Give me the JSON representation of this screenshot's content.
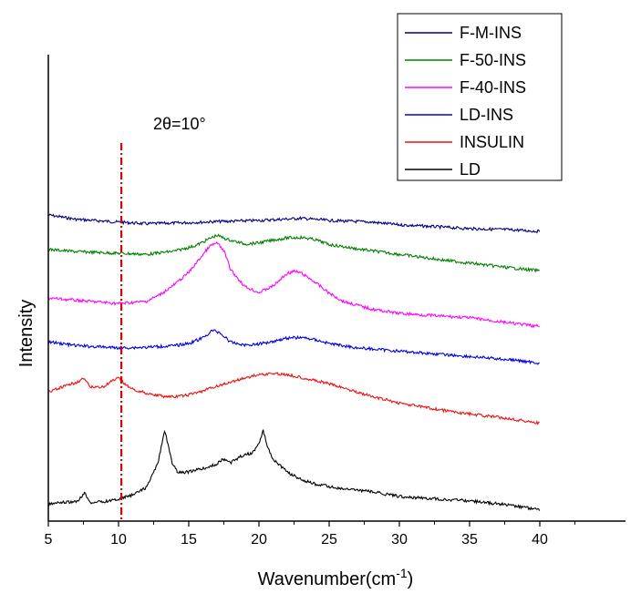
{
  "chart_data": {
    "type": "line",
    "xlabel": "Wavenumber(cm",
    "xlabel_sup": "-1",
    "xlabel_close": ")",
    "ylabel": "Intensity",
    "xlim": [
      5,
      42
    ],
    "x_ticks": [
      5,
      10,
      15,
      20,
      25,
      30,
      35,
      40
    ],
    "y_ticks_shown": false,
    "grid": false,
    "legend_position": "top-right",
    "annotation": {
      "text": "2θ=10°",
      "x": 10.2,
      "line_color": "#dd0000",
      "line_style": "dash-dot"
    },
    "series": [
      {
        "name": "F-M-INS",
        "color": "#000080",
        "x": [
          5,
          7,
          10,
          12,
          15,
          17,
          20,
          23,
          25,
          28,
          30,
          33,
          35,
          38,
          40
        ],
        "y": [
          -0.6,
          -0.68,
          -0.73,
          -0.76,
          -0.74,
          -0.72,
          -0.7,
          -0.66,
          -0.7,
          -0.73,
          -0.78,
          -0.82,
          -0.85,
          -0.87,
          -0.9
        ]
      },
      {
        "name": "F-50-INS",
        "color": "#008000",
        "x": [
          5,
          7,
          10,
          12,
          14,
          15.5,
          16.5,
          17,
          17.8,
          19,
          20,
          21,
          22,
          23,
          24,
          25,
          27,
          30,
          33,
          35,
          38,
          40
        ],
        "y": [
          -1.23,
          -1.27,
          -1.3,
          -1.32,
          -1.26,
          -1.16,
          -1.03,
          -0.97,
          -1.05,
          -1.13,
          -1.11,
          -1.06,
          -1.02,
          -1.01,
          -1.05,
          -1.14,
          -1.22,
          -1.32,
          -1.42,
          -1.48,
          -1.57,
          -1.62
        ]
      },
      {
        "name": "F-40-INS",
        "color": "#ff00ff",
        "x": [
          5,
          7,
          10,
          12,
          13,
          14,
          15,
          16,
          16.5,
          17,
          17.5,
          18,
          19,
          20,
          21,
          22,
          22.5,
          23,
          24,
          25,
          26,
          28,
          30,
          33,
          35,
          38,
          40
        ],
        "y": [
          -2.12,
          -2.16,
          -2.22,
          -2.18,
          -2.05,
          -1.87,
          -1.65,
          -1.33,
          -1.17,
          -1.11,
          -1.25,
          -1.61,
          -1.91,
          -2.02,
          -1.9,
          -1.67,
          -1.63,
          -1.66,
          -1.83,
          -2.03,
          -2.18,
          -2.32,
          -2.4,
          -2.45,
          -2.48,
          -2.58,
          -2.64
        ]
      },
      {
        "name": "LD-INS",
        "color": "#0000dd",
        "x": [
          5,
          7,
          10,
          12,
          14,
          15,
          16,
          16.7,
          17.2,
          18,
          19,
          20,
          21,
          22,
          23,
          24,
          25,
          27,
          30,
          33,
          35,
          38,
          40
        ],
        "y": [
          -2.92,
          -2.99,
          -3.03,
          -3.02,
          -2.99,
          -2.95,
          -2.85,
          -2.71,
          -2.75,
          -2.93,
          -2.98,
          -2.96,
          -2.91,
          -2.85,
          -2.84,
          -2.88,
          -2.95,
          -3.03,
          -3.09,
          -3.15,
          -3.19,
          -3.25,
          -3.31
        ]
      },
      {
        "name": "INSULIN",
        "color": "#ee1111",
        "x": [
          5,
          6,
          7,
          7.5,
          8,
          9,
          9.5,
          10,
          10.5,
          11,
          12,
          13,
          14,
          15,
          16,
          17,
          18,
          19,
          20,
          21,
          22,
          23,
          24,
          25,
          26,
          28,
          30,
          33,
          35,
          38,
          40
        ],
        "y": [
          -3.84,
          -3.75,
          -3.66,
          -3.59,
          -3.75,
          -3.74,
          -3.64,
          -3.59,
          -3.7,
          -3.79,
          -3.86,
          -3.91,
          -3.93,
          -3.89,
          -3.82,
          -3.73,
          -3.66,
          -3.58,
          -3.52,
          -3.5,
          -3.52,
          -3.57,
          -3.63,
          -3.69,
          -3.76,
          -3.92,
          -4.04,
          -4.17,
          -4.24,
          -4.33,
          -4.41
        ]
      },
      {
        "name": "LD",
        "color": "#000000",
        "x": [
          5,
          6,
          7,
          7.6,
          8,
          9,
          10,
          11,
          12,
          12.8,
          13.3,
          13.8,
          14.2,
          15,
          16,
          17,
          17.4,
          18,
          19,
          19.5,
          20,
          20.3,
          20.6,
          21,
          22,
          23,
          24,
          25,
          26,
          28,
          30,
          33,
          35,
          38,
          40
        ],
        "y": [
          -5.89,
          -5.86,
          -5.85,
          -5.69,
          -5.86,
          -5.84,
          -5.8,
          -5.72,
          -5.58,
          -5.14,
          -4.54,
          -5.12,
          -5.31,
          -5.3,
          -5.24,
          -5.16,
          -5.06,
          -5.13,
          -4.97,
          -4.97,
          -4.78,
          -4.55,
          -4.82,
          -5.06,
          -5.3,
          -5.44,
          -5.52,
          -5.57,
          -5.61,
          -5.66,
          -5.75,
          -5.8,
          -5.83,
          -5.91,
          -5.99
        ]
      }
    ]
  }
}
